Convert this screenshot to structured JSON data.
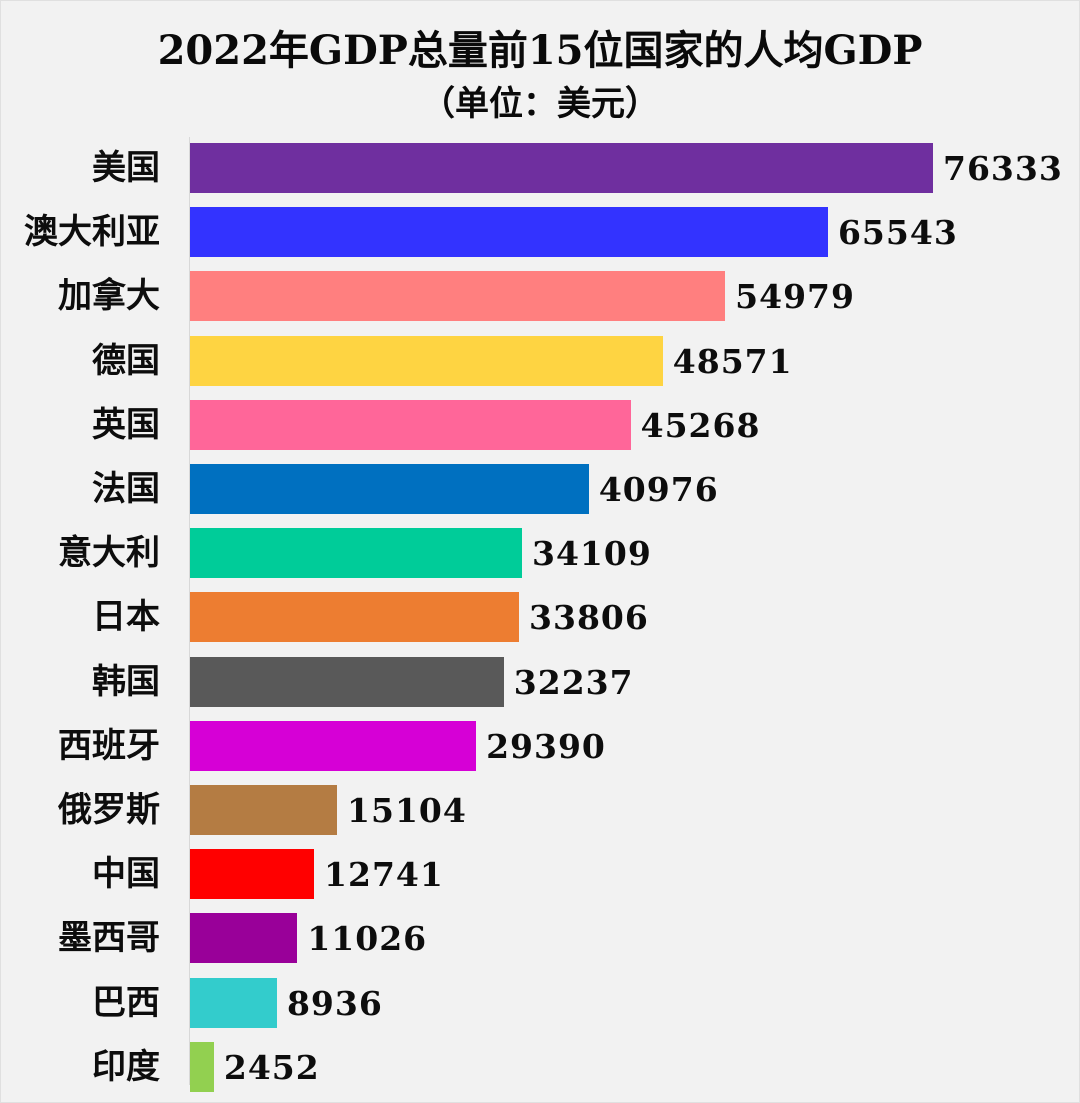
{
  "title": "2022年GDP总量前15位国家的人均GDP",
  "subtitle": "（单位：美元）",
  "chart_data": {
    "type": "bar",
    "orientation": "horizontal",
    "title": "2022年GDP总量前15位国家的人均GDP",
    "subtitle": "（单位：美元）",
    "xlabel": "",
    "ylabel": "",
    "unit": "美元",
    "grid": false,
    "legend": null,
    "xlim": [
      0,
      76333
    ],
    "categories": [
      "美国",
      "澳大利亚",
      "加拿大",
      "德国",
      "英国",
      "法国",
      "意大利",
      "日本",
      "韩国",
      "西班牙",
      "俄罗斯",
      "中国",
      "墨西哥",
      "巴西",
      "印度"
    ],
    "values": [
      76333,
      65543,
      54979,
      48571,
      45268,
      40976,
      34109,
      33806,
      32237,
      29390,
      15104,
      12741,
      11026,
      8936,
      2452
    ],
    "colors": [
      "#6f2f9f",
      "#3333ff",
      "#ff7f7f",
      "#fed442",
      "#ff6699",
      "#0070c0",
      "#00cc99",
      "#ed7d31",
      "#595959",
      "#d600d6",
      "#b47c43",
      "#ff0000",
      "#990099",
      "#33cccc",
      "#92d050"
    ]
  }
}
